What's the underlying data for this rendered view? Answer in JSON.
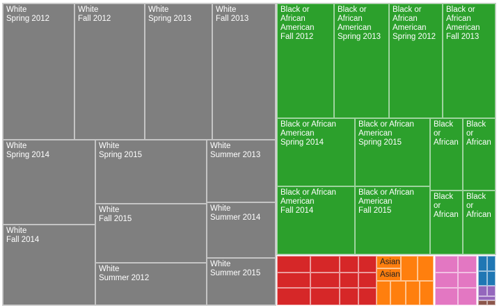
{
  "chart_data": {
    "type": "treemap",
    "title": "",
    "groups": [
      {
        "name": "White",
        "color": "#7f7f7f",
        "items": [
          {
            "label": "White\nSpring 2012"
          },
          {
            "label": "White\nFall 2012"
          },
          {
            "label": "White\nSpring 2013"
          },
          {
            "label": "White\nFall 2013"
          },
          {
            "label": "White\nSpring 2014"
          },
          {
            "label": "White\nSpring 2015"
          },
          {
            "label": "White\nSummer 2013"
          },
          {
            "label": "White\nFall 2015"
          },
          {
            "label": "White\nSummer 2014"
          },
          {
            "label": "White\nFall 2014"
          },
          {
            "label": "White\nSummer 2012"
          },
          {
            "label": "White\nSummer 2015"
          }
        ]
      },
      {
        "name": "Black or African American",
        "color": "#2ca02c",
        "items": [
          {
            "label": "Black or African\nAmerican\nFall 2012"
          },
          {
            "label": "Black or\nAfrican\nAmerican\nSpring 2013"
          },
          {
            "label": "Black or\nAfrican\nAmerican\nSpring 2012"
          },
          {
            "label": "Black or\nAfrican\nAmerican\nFall 2013"
          },
          {
            "label": "Black or African\nAmerican\nSpring 2014"
          },
          {
            "label": "Black or African\nAmerican\nSpring 2015"
          },
          {
            "label": "Black\nor\nAfrican"
          },
          {
            "label": "Black\nor\nAfrican"
          },
          {
            "label": "Black or African\nAmerican\nFall 2014"
          },
          {
            "label": "Black or African\nAmerican\nFall 2015"
          },
          {
            "label": "Black or\nAfrican"
          },
          {
            "label": "Black\nor\nAfrican"
          }
        ]
      },
      {
        "name": "",
        "color": "#d62728",
        "items": []
      },
      {
        "name": "Asian",
        "color": "#ff7f0e",
        "items": [
          {
            "label": "Asian"
          },
          {
            "label": "Asian"
          }
        ]
      },
      {
        "name": "",
        "color": "#e377c2",
        "items": []
      },
      {
        "name": "",
        "color": "#1f77b4",
        "items": []
      },
      {
        "name": "",
        "color": "#9467bd",
        "items": []
      },
      {
        "name": "",
        "color": "#8c564b",
        "items": []
      }
    ]
  }
}
